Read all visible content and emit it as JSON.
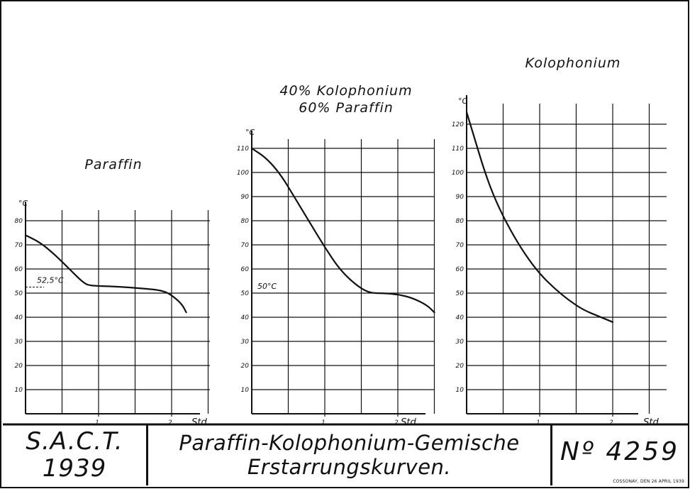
{
  "chart_data": [
    {
      "type": "line",
      "title": "Paraffin",
      "ylabel": "°C",
      "xlabel": "Std.",
      "xlim": [
        0,
        2.7
      ],
      "ylim": [
        0,
        85
      ],
      "x_ticks": [
        1,
        2
      ],
      "x_tick_labels": [
        "1",
        "2"
      ],
      "y_ticks": [
        10,
        20,
        30,
        40,
        50,
        60,
        70,
        80
      ],
      "y_tick_labels": [
        "10",
        "20",
        "30",
        "40",
        "50",
        "60",
        "70",
        "80"
      ],
      "annotation": "52,5°C",
      "annotation_value": 52.5,
      "x": [
        0,
        0.2,
        0.4,
        0.6,
        0.8,
        0.9,
        1.2,
        1.6,
        1.9,
        2.05,
        2.15,
        2.2
      ],
      "y": [
        74,
        71,
        66,
        60,
        54,
        53,
        52.8,
        52,
        51,
        48,
        45,
        42
      ]
    },
    {
      "type": "line",
      "title": "40% Kolophonium\n60% Paraffin",
      "title_lines": [
        "40% Kolophonium",
        "60% Paraffin"
      ],
      "ylabel": "°C",
      "xlabel": "Std.",
      "xlim": [
        0,
        2.5
      ],
      "ylim": [
        0,
        115
      ],
      "x_ticks": [
        1,
        2
      ],
      "x_tick_labels": [
        "1",
        "2"
      ],
      "y_ticks": [
        10,
        20,
        30,
        40,
        50,
        60,
        70,
        80,
        90,
        100,
        110
      ],
      "y_tick_labels": [
        "10",
        "20",
        "30",
        "40",
        "50",
        "60",
        "70",
        "80",
        "90",
        "100",
        "110"
      ],
      "annotation": "50°C",
      "annotation_value": 50,
      "x": [
        0,
        0.2,
        0.4,
        0.6,
        0.8,
        1.0,
        1.2,
        1.4,
        1.6,
        1.8,
        2.0,
        2.2,
        2.4,
        2.5
      ],
      "y": [
        110,
        106,
        99,
        89,
        79,
        69,
        60,
        54,
        50,
        50,
        49.5,
        48,
        45,
        42
      ]
    },
    {
      "type": "line",
      "title": "Kolophonium",
      "ylabel": "°C",
      "xlabel": "Std.",
      "xlim": [
        0,
        2.5
      ],
      "ylim": [
        0,
        125
      ],
      "x_ticks": [
        1,
        2
      ],
      "x_tick_labels": [
        "1",
        "2"
      ],
      "y_ticks": [
        10,
        20,
        30,
        40,
        50,
        60,
        70,
        80,
        90,
        100,
        110,
        120
      ],
      "y_tick_labels": [
        "10",
        "20",
        "30",
        "40",
        "50",
        "60",
        "70",
        "80",
        "90",
        "100",
        "110",
        "120"
      ],
      "x": [
        0,
        0.1,
        0.25,
        0.4,
        0.6,
        0.8,
        1.0,
        1.2,
        1.4,
        1.6,
        1.8,
        2.0
      ],
      "y": [
        125,
        115,
        100,
        88,
        76,
        66,
        58,
        52,
        47,
        43,
        40.5,
        38
      ]
    }
  ],
  "title_block": {
    "org": "S.A.C.T.",
    "year": "1939",
    "title_line1": "Paraffin-Kolophonium-Gemische",
    "title_line2": "Erstarrungskurven.",
    "number": "Nº 4259",
    "small_print": "COSSONAY, DEN 26 APRIL 1939"
  }
}
